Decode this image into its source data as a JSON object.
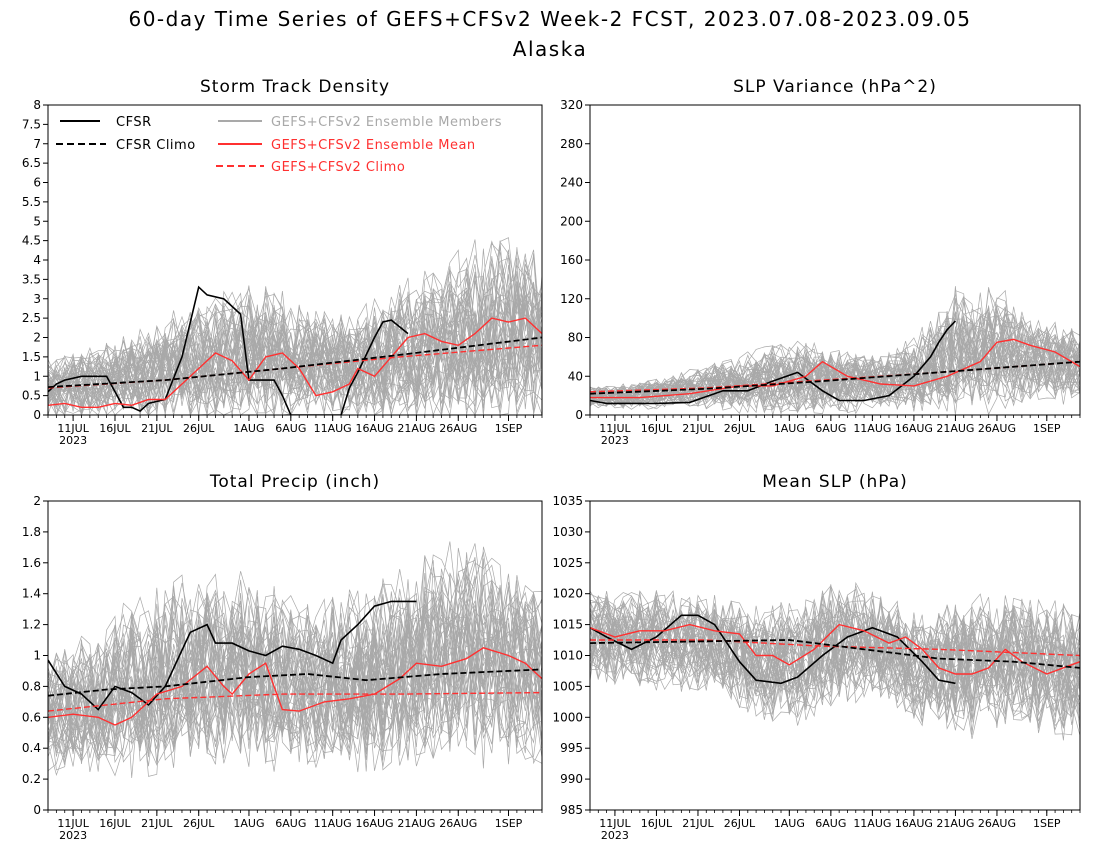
{
  "figure": {
    "title_line1": "60-day Time Series of GEFS+CFSv2 Week-2 FCST, 2023.07.08-2023.09.05",
    "title_line2": "Alaska"
  },
  "colors": {
    "cfsr": "#000000",
    "ensemble_members": "#a9a9a9",
    "ensemble_mean": "#ff3030",
    "gefs_climo": "#ff3030",
    "cfsr_climo": "#000000"
  },
  "legend": {
    "cfsr": "CFSR",
    "cfsr_climo": "CFSR Climo",
    "members": "GEFS+CFSv2 Ensemble Members",
    "mean": "GEFS+CFSv2 Ensemble Mean",
    "climo": "GEFS+CFSv2 Climo"
  },
  "x_axis": {
    "start_date": "2023-07-08",
    "end_date": "2023-09-05",
    "tick_labels": [
      "11JUL",
      "16JUL",
      "21JUL",
      "26JUL",
      "1AUG",
      "6AUG",
      "11AUG",
      "16AUG",
      "21AUG",
      "26AUG",
      "1SEP"
    ],
    "tick_dates": [
      "2023-07-11",
      "2023-07-16",
      "2023-07-21",
      "2023-07-26",
      "2023-08-01",
      "2023-08-06",
      "2023-08-11",
      "2023-08-16",
      "2023-08-21",
      "2023-08-26",
      "2023-09-01"
    ],
    "year_label": "2023"
  },
  "chart_data": [
    {
      "type": "line",
      "title": "Storm Track Density",
      "ylim": [
        0,
        8
      ],
      "yticks": [
        0,
        0.5,
        1,
        1.5,
        2,
        2.5,
        3,
        3.5,
        4,
        4.5,
        5,
        5.5,
        6,
        6.5,
        7,
        7.5,
        8
      ],
      "ytick_labels": [
        "0",
        "0.5",
        "1",
        "1.5",
        "2",
        "2.5",
        "3",
        "3.5",
        "4",
        "4.5",
        "5",
        "5.5",
        "6",
        "6.5",
        "7",
        "7.5",
        "8"
      ],
      "legend_visible": true,
      "members": {
        "base": [
          0.7,
          0.85,
          1.0,
          1.2,
          1.45,
          1.7,
          1.5,
          1.3,
          1.45,
          1.65,
          2.0,
          2.3,
          2.1
        ],
        "spread": [
          0.7,
          0.9,
          1.0,
          1.3,
          1.5,
          1.7,
          1.4,
          1.2,
          1.5,
          1.8,
          2.1,
          2.2,
          2.0
        ]
      },
      "series": [
        {
          "key": "cfsr",
          "name": "CFSR",
          "x": [
            "2023-07-08",
            "2023-07-09",
            "2023-07-10",
            "2023-07-12",
            "2023-07-15",
            "2023-07-16",
            "2023-07-17",
            "2023-07-18",
            "2023-07-19",
            "2023-07-20",
            "2023-07-22",
            "2023-07-24",
            "2023-07-26",
            "2023-07-27",
            "2023-07-29",
            "2023-07-30",
            "2023-07-31",
            "2023-08-01",
            "2023-08-04",
            "2023-08-05",
            "2023-08-06",
            "2023-08-12",
            "2023-08-13",
            "2023-08-14",
            "2023-08-16",
            "2023-08-17",
            "2023-08-18",
            "2023-08-20"
          ],
          "values": [
            0.6,
            0.8,
            0.9,
            1.0,
            1.0,
            0.6,
            0.2,
            0.2,
            0.1,
            0.3,
            0.4,
            1.5,
            3.3,
            3.1,
            3.0,
            2.8,
            2.6,
            0.9,
            0.9,
            0.5,
            0.0,
            0.0,
            0.7,
            1.1,
            2.0,
            2.4,
            2.45,
            2.1
          ]
        },
        {
          "key": "mean",
          "name": "GEFS+CFSv2 Ensemble Mean",
          "x": [
            "2023-07-08",
            "2023-07-10",
            "2023-07-12",
            "2023-07-14",
            "2023-07-16",
            "2023-07-18",
            "2023-07-20",
            "2023-07-22",
            "2023-07-24",
            "2023-07-26",
            "2023-07-28",
            "2023-07-30",
            "2023-08-01",
            "2023-08-03",
            "2023-08-05",
            "2023-08-07",
            "2023-08-09",
            "2023-08-11",
            "2023-08-13",
            "2023-08-14",
            "2023-08-16",
            "2023-08-18",
            "2023-08-20",
            "2023-08-22",
            "2023-08-24",
            "2023-08-26",
            "2023-08-28",
            "2023-08-30",
            "2023-09-01",
            "2023-09-03",
            "2023-09-05"
          ],
          "values": [
            0.25,
            0.3,
            0.2,
            0.2,
            0.3,
            0.25,
            0.4,
            0.4,
            0.8,
            1.2,
            1.6,
            1.4,
            0.9,
            1.5,
            1.6,
            1.2,
            0.5,
            0.6,
            0.8,
            1.2,
            1.0,
            1.5,
            2.0,
            2.1,
            1.9,
            1.8,
            2.1,
            2.5,
            2.4,
            2.5,
            2.1
          ]
        },
        {
          "key": "climo",
          "name": "GEFS+CFSv2 Climo",
          "x": [
            "2023-07-08",
            "2023-07-22",
            "2023-08-05",
            "2023-08-19",
            "2023-09-05"
          ],
          "values": [
            0.7,
            0.9,
            1.2,
            1.5,
            1.8
          ]
        },
        {
          "key": "cfsr_climo",
          "name": "CFSR Climo",
          "x": [
            "2023-07-08",
            "2023-07-22",
            "2023-08-05",
            "2023-08-19",
            "2023-09-05"
          ],
          "values": [
            0.72,
            0.9,
            1.2,
            1.55,
            2.0
          ]
        }
      ]
    },
    {
      "type": "line",
      "title": "SLP Variance (hPa^2)",
      "ylim": [
        0,
        320
      ],
      "yticks": [
        0,
        40,
        80,
        120,
        160,
        200,
        240,
        280,
        320
      ],
      "ytick_labels": [
        "0",
        "40",
        "80",
        "120",
        "160",
        "200",
        "240",
        "280",
        "320"
      ],
      "legend_visible": false,
      "members": {
        "base": [
          18,
          20,
          24,
          30,
          34,
          38,
          36,
          34,
          42,
          65,
          70,
          58,
          52
        ],
        "spread": [
          10,
          12,
          15,
          22,
          30,
          35,
          30,
          26,
          35,
          65,
          55,
          40,
          35
        ]
      },
      "series": [
        {
          "key": "cfsr",
          "name": "CFSR",
          "x": [
            "2023-07-08",
            "2023-07-10",
            "2023-07-13",
            "2023-07-16",
            "2023-07-20",
            "2023-07-24",
            "2023-07-27",
            "2023-07-30",
            "2023-08-02",
            "2023-08-05",
            "2023-08-07",
            "2023-08-10",
            "2023-08-13",
            "2023-08-16",
            "2023-08-18",
            "2023-08-19",
            "2023-08-20",
            "2023-08-21"
          ],
          "values": [
            15,
            12,
            12,
            12,
            13,
            25,
            25,
            35,
            44,
            25,
            15,
            15,
            20,
            40,
            60,
            75,
            88,
            97
          ]
        },
        {
          "key": "mean",
          "name": "GEFS+CFSv2 Ensemble Mean",
          "x": [
            "2023-07-08",
            "2023-07-14",
            "2023-07-20",
            "2023-07-26",
            "2023-07-30",
            "2023-08-03",
            "2023-08-05",
            "2023-08-08",
            "2023-08-12",
            "2023-08-16",
            "2023-08-20",
            "2023-08-24",
            "2023-08-26",
            "2023-08-28",
            "2023-08-30",
            "2023-09-02",
            "2023-09-05"
          ],
          "values": [
            18,
            18,
            22,
            30,
            30,
            40,
            55,
            40,
            32,
            30,
            40,
            55,
            75,
            78,
            72,
            65,
            50
          ]
        },
        {
          "key": "climo",
          "name": "GEFS+CFSv2 Climo",
          "x": [
            "2023-07-08",
            "2023-07-22",
            "2023-08-05",
            "2023-08-19",
            "2023-09-05"
          ],
          "values": [
            24,
            28,
            36,
            44,
            55
          ]
        },
        {
          "key": "cfsr_climo",
          "name": "CFSR Climo",
          "x": [
            "2023-07-08",
            "2023-07-22",
            "2023-08-05",
            "2023-08-19",
            "2023-09-05"
          ],
          "values": [
            22,
            27,
            35,
            44,
            55
          ]
        }
      ]
    },
    {
      "type": "line",
      "title": "Total Precip (inch)",
      "ylim": [
        0,
        2
      ],
      "yticks": [
        0,
        0.2,
        0.4,
        0.6,
        0.8,
        1,
        1.2,
        1.4,
        1.6,
        1.8,
        2
      ],
      "ytick_labels": [
        "0",
        "0.2",
        "0.4",
        "0.6",
        "0.8",
        "1",
        "1.2",
        "1.4",
        "1.6",
        "1.8",
        "2"
      ],
      "legend_visible": false,
      "members": {
        "base": [
          0.62,
          0.68,
          0.78,
          0.86,
          0.9,
          0.88,
          0.82,
          0.8,
          0.84,
          0.95,
          1.02,
          0.95,
          0.85
        ],
        "spread": [
          0.35,
          0.4,
          0.5,
          0.55,
          0.58,
          0.55,
          0.5,
          0.5,
          0.55,
          0.6,
          0.65,
          0.6,
          0.5
        ]
      },
      "series": [
        {
          "key": "cfsr",
          "name": "CFSR",
          "x": [
            "2023-07-08",
            "2023-07-10",
            "2023-07-12",
            "2023-07-14",
            "2023-07-16",
            "2023-07-18",
            "2023-07-20",
            "2023-07-22",
            "2023-07-25",
            "2023-07-27",
            "2023-07-28",
            "2023-07-30",
            "2023-08-01",
            "2023-08-03",
            "2023-08-05",
            "2023-08-07",
            "2023-08-09",
            "2023-08-11",
            "2023-08-12",
            "2023-08-14",
            "2023-08-16",
            "2023-08-18",
            "2023-08-21"
          ],
          "values": [
            0.97,
            0.8,
            0.75,
            0.65,
            0.8,
            0.76,
            0.68,
            0.8,
            1.15,
            1.2,
            1.08,
            1.08,
            1.03,
            1.0,
            1.06,
            1.04,
            1.0,
            0.95,
            1.1,
            1.2,
            1.32,
            1.35,
            1.35
          ]
        },
        {
          "key": "mean",
          "name": "GEFS+CFSv2 Ensemble Mean",
          "x": [
            "2023-07-08",
            "2023-07-11",
            "2023-07-14",
            "2023-07-16",
            "2023-07-18",
            "2023-07-21",
            "2023-07-24",
            "2023-07-27",
            "2023-07-29",
            "2023-07-30",
            "2023-08-01",
            "2023-08-03",
            "2023-08-05",
            "2023-08-07",
            "2023-08-10",
            "2023-08-13",
            "2023-08-16",
            "2023-08-19",
            "2023-08-21",
            "2023-08-24",
            "2023-08-27",
            "2023-08-29",
            "2023-09-01",
            "2023-09-03",
            "2023-09-05"
          ],
          "values": [
            0.6,
            0.62,
            0.6,
            0.55,
            0.6,
            0.75,
            0.8,
            0.93,
            0.8,
            0.75,
            0.88,
            0.95,
            0.65,
            0.64,
            0.7,
            0.72,
            0.75,
            0.85,
            0.95,
            0.93,
            0.98,
            1.05,
            1.0,
            0.95,
            0.85
          ]
        },
        {
          "key": "climo",
          "name": "GEFS+CFSv2 Climo",
          "x": [
            "2023-07-08",
            "2023-07-22",
            "2023-08-05",
            "2023-08-19",
            "2023-09-05"
          ],
          "values": [
            0.64,
            0.72,
            0.75,
            0.75,
            0.76
          ]
        },
        {
          "key": "cfsr_climo",
          "name": "CFSR Climo",
          "x": [
            "2023-07-08",
            "2023-07-15",
            "2023-07-22",
            "2023-08-01",
            "2023-08-08",
            "2023-08-15",
            "2023-08-24",
            "2023-09-05"
          ],
          "values": [
            0.74,
            0.78,
            0.8,
            0.86,
            0.88,
            0.84,
            0.88,
            0.91
          ]
        }
      ]
    },
    {
      "type": "line",
      "title": "Mean SLP (hPa)",
      "ylim": [
        985,
        1035
      ],
      "yticks": [
        985,
        990,
        995,
        1000,
        1005,
        1010,
        1015,
        1020,
        1025,
        1030,
        1035
      ],
      "ytick_labels": [
        "985",
        "990",
        "995",
        "1000",
        "1005",
        "1010",
        "1015",
        "1020",
        "1025",
        "1030",
        "1035"
      ],
      "legend_visible": false,
      "members": {
        "base": [
          1013,
          1013,
          1012.5,
          1012,
          1009,
          1009,
          1012,
          1012,
          1008,
          1008,
          1009,
          1008,
          1007
        ],
        "spread": [
          7,
          7,
          7,
          7,
          8,
          9,
          9,
          8,
          8,
          10,
          10,
          10,
          10
        ]
      },
      "series": [
        {
          "key": "cfsr",
          "name": "CFSR",
          "x": [
            "2023-07-08",
            "2023-07-10",
            "2023-07-13",
            "2023-07-16",
            "2023-07-19",
            "2023-07-21",
            "2023-07-23",
            "2023-07-26",
            "2023-07-28",
            "2023-07-31",
            "2023-08-02",
            "2023-08-05",
            "2023-08-08",
            "2023-08-11",
            "2023-08-14",
            "2023-08-17",
            "2023-08-19",
            "2023-08-21"
          ],
          "values": [
            1014.5,
            1013,
            1011,
            1013,
            1016.5,
            1016.5,
            1015,
            1009,
            1006,
            1005.5,
            1006.5,
            1010,
            1013,
            1014.5,
            1013,
            1009,
            1006,
            1005.5
          ]
        },
        {
          "key": "mean",
          "name": "GEFS+CFSv2 Ensemble Mean",
          "x": [
            "2023-07-08",
            "2023-07-11",
            "2023-07-14",
            "2023-07-17",
            "2023-07-20",
            "2023-07-23",
            "2023-07-26",
            "2023-07-28",
            "2023-07-30",
            "2023-08-01",
            "2023-08-04",
            "2023-08-07",
            "2023-08-10",
            "2023-08-13",
            "2023-08-15",
            "2023-08-17",
            "2023-08-19",
            "2023-08-21",
            "2023-08-23",
            "2023-08-25",
            "2023-08-27",
            "2023-08-29",
            "2023-09-01",
            "2023-09-05"
          ],
          "values": [
            1014.5,
            1013,
            1014,
            1014,
            1015,
            1014,
            1013.5,
            1010,
            1010,
            1008.5,
            1011,
            1015,
            1014,
            1012,
            1013,
            1011,
            1008,
            1007,
            1007,
            1008,
            1011,
            1009,
            1007,
            1009
          ]
        },
        {
          "key": "climo",
          "name": "GEFS+CFSv2 Climo",
          "x": [
            "2023-07-08",
            "2023-07-22",
            "2023-08-05",
            "2023-08-19",
            "2023-09-05"
          ],
          "values": [
            1012.5,
            1012.5,
            1011.5,
            1011,
            1010
          ]
        },
        {
          "key": "cfsr_climo",
          "name": "CFSR Climo",
          "x": [
            "2023-07-08",
            "2023-07-22",
            "2023-08-01",
            "2023-08-10",
            "2023-08-19",
            "2023-08-28",
            "2023-09-05"
          ],
          "values": [
            1012,
            1012.3,
            1012.5,
            1011,
            1009.5,
            1009,
            1008
          ]
        }
      ]
    }
  ]
}
